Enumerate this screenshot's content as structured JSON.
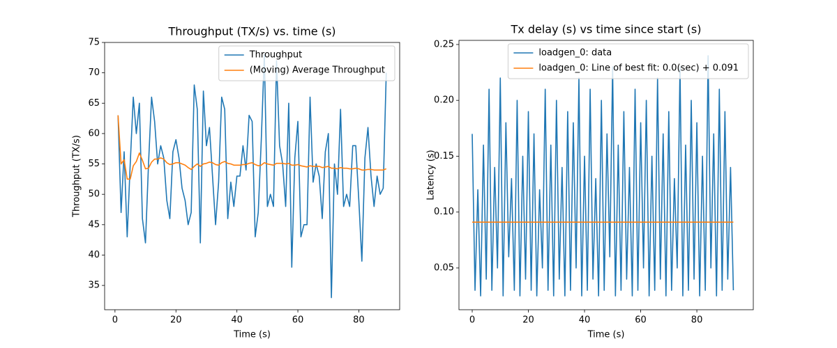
{
  "chart_data": [
    {
      "type": "line",
      "title": "Throughput (TX/s) vs. time (s)",
      "xlabel": "Time (s)",
      "ylabel": "Throughput (TX/s)",
      "xlim": [
        -3.4,
        93.4
      ],
      "xticks": [
        0,
        20,
        40,
        60,
        80
      ],
      "ylim": [
        31,
        75
      ],
      "yticks": [
        35,
        40,
        45,
        50,
        55,
        60,
        65,
        70,
        75
      ],
      "legend": "upper right",
      "series": [
        {
          "name": "Throughput",
          "color": "#1f77b4",
          "x": [
            1,
            2,
            3,
            4,
            5,
            6,
            7,
            8,
            9,
            10,
            11,
            12,
            13,
            14,
            15,
            16,
            17,
            18,
            19,
            20,
            21,
            22,
            23,
            24,
            25,
            26,
            27,
            28,
            29,
            30,
            31,
            32,
            33,
            34,
            35,
            36,
            37,
            38,
            39,
            40,
            41,
            42,
            43,
            44,
            45,
            46,
            47,
            48,
            49,
            50,
            51,
            52,
            53,
            54,
            55,
            56,
            57,
            58,
            59,
            60,
            61,
            62,
            63,
            64,
            65,
            66,
            67,
            68,
            69,
            70,
            71,
            72,
            73,
            74,
            75,
            76,
            77,
            78,
            79,
            80,
            81,
            82,
            83,
            84,
            85,
            86,
            87,
            88,
            89
          ],
          "values": [
            63,
            47,
            57,
            43,
            55,
            66,
            60,
            65,
            46,
            42,
            55,
            66,
            62,
            55,
            58,
            56,
            49,
            46,
            57,
            59,
            56,
            51,
            49,
            45,
            47,
            68,
            64,
            42,
            67,
            58,
            61,
            53,
            45,
            52,
            66,
            64,
            46,
            52,
            48,
            53,
            53,
            58,
            54,
            63,
            62,
            43,
            47,
            59,
            73,
            48,
            50,
            48,
            72,
            58,
            55,
            48,
            65,
            38,
            56,
            62,
            43,
            45,
            45,
            66,
            52,
            55,
            53,
            46,
            57,
            60,
            33,
            55,
            50,
            64,
            48,
            50,
            48,
            58,
            58,
            49,
            39,
            56,
            61,
            53,
            48,
            53,
            50,
            51,
            70
          ]
        },
        {
          "name": "(Moving) Average Throughput",
          "color": "#ff7f0e",
          "x": [
            1,
            2,
            3,
            4,
            5,
            6,
            7,
            8,
            9,
            10,
            11,
            12,
            13,
            14,
            15,
            16,
            17,
            18,
            19,
            20,
            21,
            22,
            23,
            24,
            25,
            26,
            27,
            28,
            29,
            30,
            31,
            32,
            33,
            34,
            35,
            36,
            37,
            38,
            39,
            40,
            41,
            42,
            43,
            44,
            45,
            46,
            47,
            48,
            49,
            50,
            51,
            52,
            53,
            54,
            55,
            56,
            57,
            58,
            59,
            60,
            61,
            62,
            63,
            64,
            65,
            66,
            67,
            68,
            69,
            70,
            71,
            72,
            73,
            74,
            75,
            76,
            77,
            78,
            79,
            80,
            81,
            82,
            83,
            84,
            85,
            86,
            87,
            88,
            89
          ],
          "values": [
            63,
            55,
            55.7,
            52.5,
            52.5,
            54.7,
            55.4,
            56.8,
            55.6,
            54.2,
            54.3,
            55.3,
            55.8,
            55.8,
            56,
            55.8,
            55.2,
            54.9,
            55,
            55.2,
            55.2,
            55,
            54.8,
            54.4,
            54.1,
            54.6,
            55,
            54.6,
            55,
            55.1,
            55.3,
            55.2,
            54.9,
            54.8,
            55.2,
            55.4,
            55.1,
            55,
            54.8,
            54.8,
            54.8,
            54.9,
            54.9,
            55.1,
            55.2,
            54.9,
            54.7,
            54.8,
            55.2,
            55,
            54.9,
            54.8,
            55.1,
            55.1,
            55.1,
            55,
            55.1,
            54.8,
            54.8,
            54.9,
            54.7,
            54.6,
            54.5,
            54.7,
            54.6,
            54.6,
            54.6,
            54.4,
            54.5,
            54.6,
            54.3,
            54.3,
            54.2,
            54.4,
            54.3,
            54.3,
            54.2,
            54.2,
            54.3,
            54.2,
            54,
            54,
            54.1,
            54.1,
            54,
            54,
            54,
            54,
            54.2
          ]
        }
      ]
    },
    {
      "type": "line",
      "title": "Tx delay (s) vs time since start (s)",
      "xlabel": "Time (s)",
      "ylabel": "Latency (s)",
      "xlim": [
        -4.72,
        100.1
      ],
      "xticks": [
        0,
        20,
        40,
        60,
        80
      ],
      "ylim": [
        0.0126,
        0.2537
      ],
      "yticks": [
        0.05,
        {
          "value": 0.1,
          "label": "0.10"
        },
        0.15,
        {
          "value": 0.2,
          "label": "0.20"
        },
        0.25
      ],
      "legend": "upper right",
      "series": [
        {
          "name": "loadgen_0: data",
          "color": "#1f77b4",
          "x": [
            0,
            1,
            2,
            3,
            4,
            5,
            6,
            7,
            8,
            9,
            10,
            11,
            12,
            13,
            14,
            15,
            16,
            17,
            18,
            19,
            20,
            21,
            22,
            23,
            24,
            25,
            26,
            27,
            28,
            29,
            30,
            31,
            32,
            33,
            34,
            35,
            36,
            37,
            38,
            39,
            40,
            41,
            42,
            43,
            44,
            45,
            46,
            47,
            48,
            49,
            50,
            51,
            52,
            53,
            54,
            55,
            56,
            57,
            58,
            59,
            60,
            61,
            62,
            63,
            64,
            65,
            66,
            67,
            68,
            69,
            70,
            71,
            72,
            73,
            74,
            75,
            76,
            77,
            78,
            79,
            80,
            81,
            82,
            83,
            84,
            85,
            86,
            87,
            88,
            89,
            90,
            91,
            92,
            93
          ],
          "values": [
            0.17,
            0.03,
            0.12,
            0.025,
            0.16,
            0.04,
            0.21,
            0.03,
            0.14,
            0.05,
            0.22,
            0.025,
            0.18,
            0.06,
            0.13,
            0.03,
            0.2,
            0.025,
            0.15,
            0.04,
            0.19,
            0.03,
            0.17,
            0.025,
            0.12,
            0.05,
            0.21,
            0.03,
            0.16,
            0.025,
            0.2,
            0.04,
            0.14,
            0.025,
            0.19,
            0.03,
            0.18,
            0.05,
            0.22,
            0.025,
            0.15,
            0.03,
            0.21,
            0.04,
            0.13,
            0.025,
            0.2,
            0.03,
            0.17,
            0.06,
            0.23,
            0.025,
            0.16,
            0.03,
            0.19,
            0.04,
            0.14,
            0.025,
            0.21,
            0.03,
            0.18,
            0.05,
            0.2,
            0.025,
            0.15,
            0.03,
            0.22,
            0.04,
            0.17,
            0.025,
            0.19,
            0.03,
            0.13,
            0.05,
            0.23,
            0.025,
            0.16,
            0.03,
            0.2,
            0.04,
            0.18,
            0.025,
            0.15,
            0.03,
            0.24,
            0.05,
            0.17,
            0.025,
            0.21,
            0.03,
            0.19,
            0.04,
            0.14,
            0.03
          ]
        },
        {
          "name": "loadgen_0: Line of best fit: 0.0(sec) + 0.091",
          "color": "#ff7f0e",
          "x": [
            0,
            93
          ],
          "values": [
            0.091,
            0.091
          ]
        }
      ]
    }
  ]
}
